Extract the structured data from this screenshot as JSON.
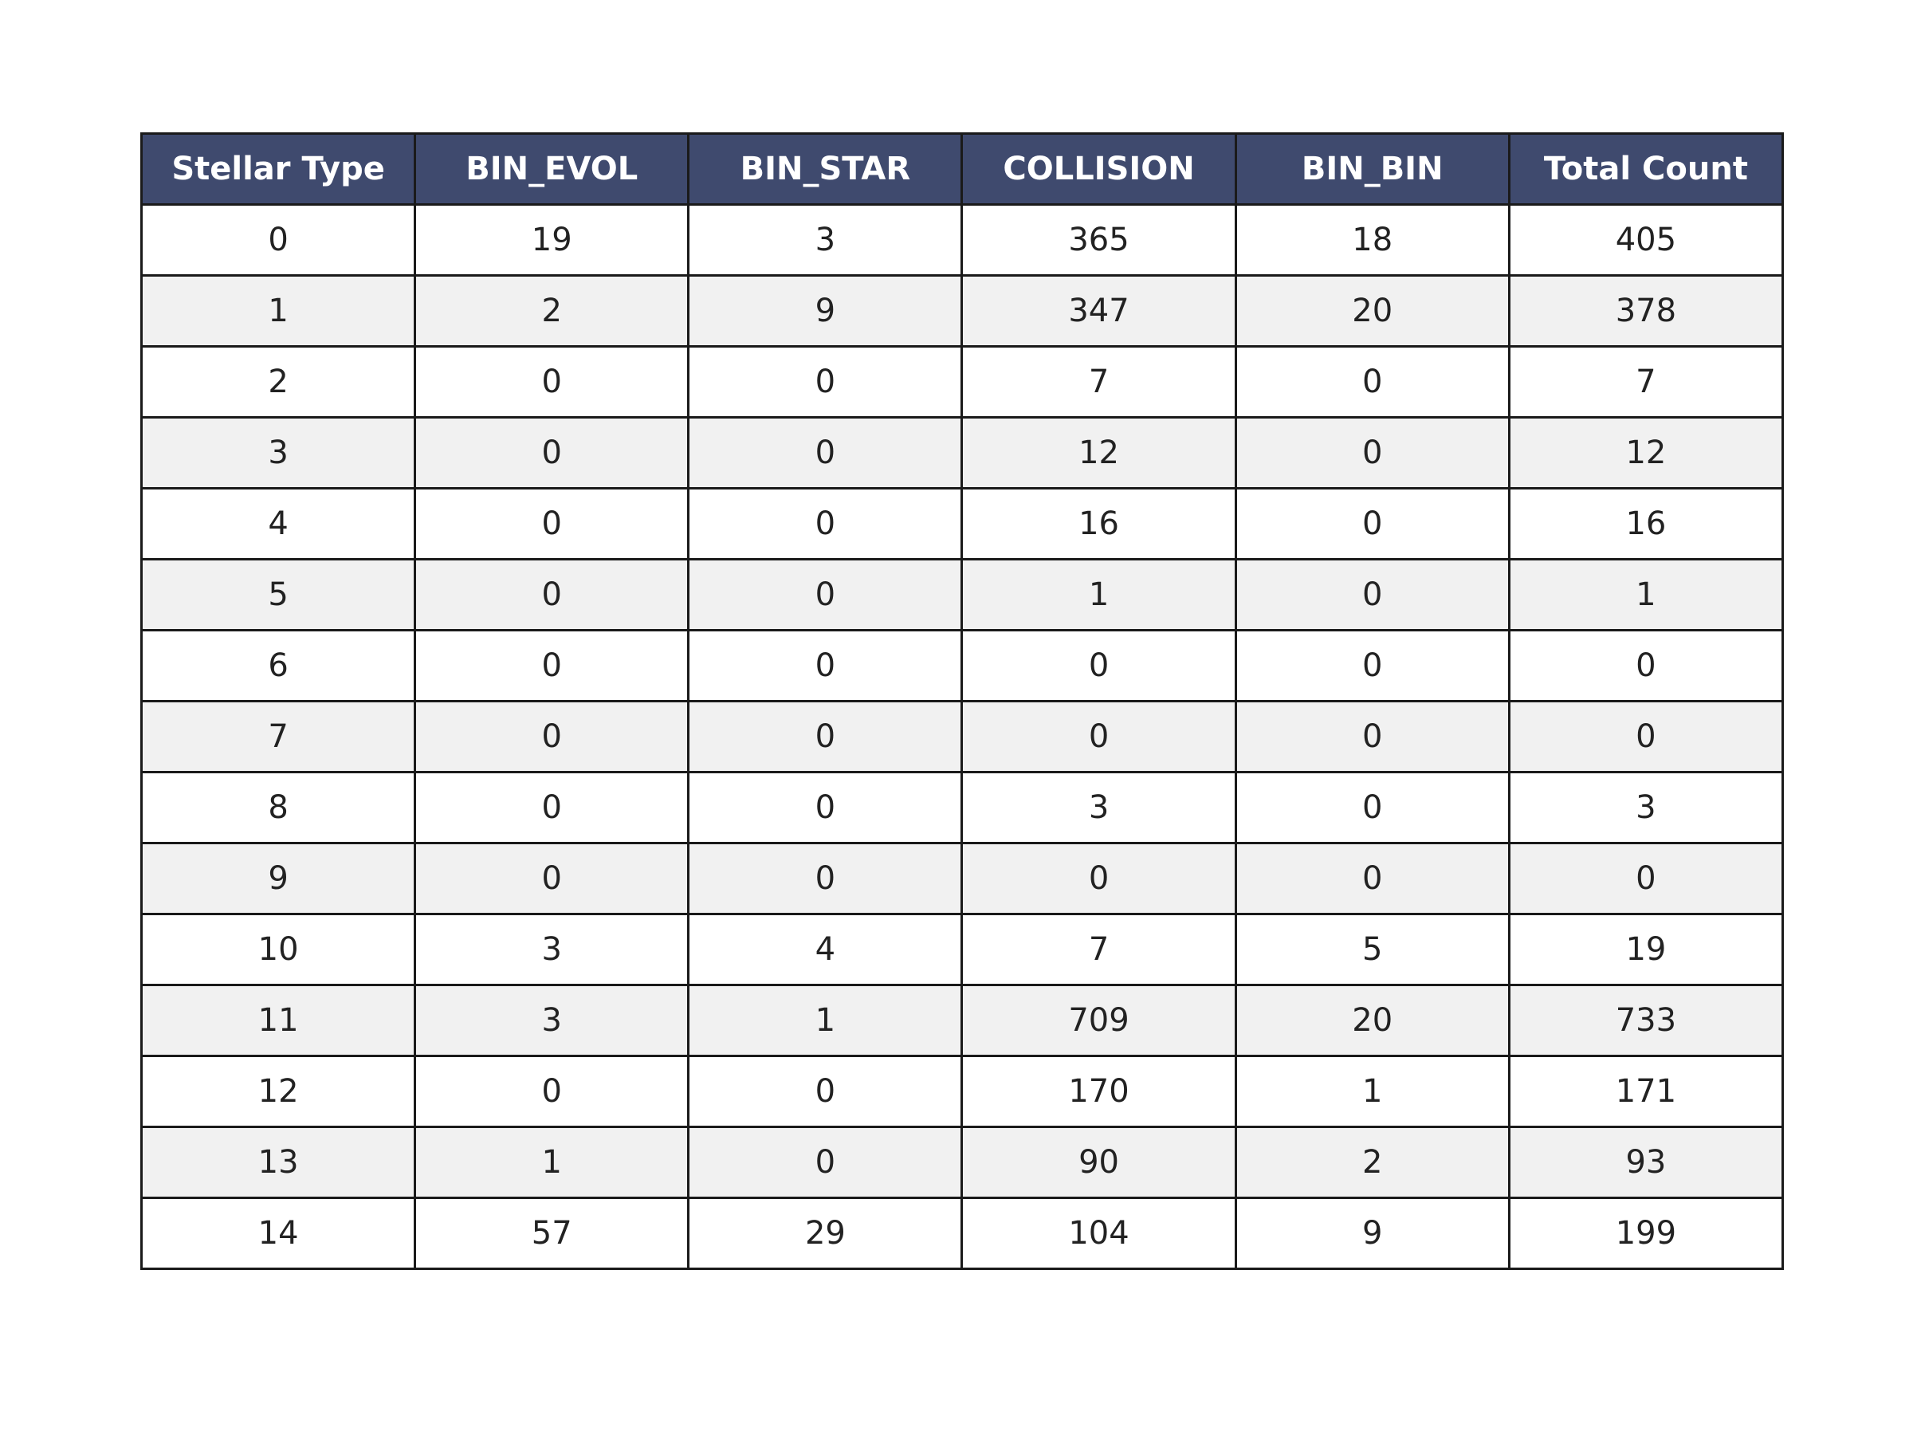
{
  "chart_data": {
    "type": "table",
    "colors": {
      "header_background": "#3f4a6e",
      "header_text": "#ffffff",
      "row_odd": "#ffffff",
      "row_even": "#f1f1f1",
      "border": "#1a1a1a",
      "cell_text": "#222222"
    },
    "columns": [
      "Stellar Type",
      "BIN_EVOL",
      "BIN_STAR",
      "COLLISION",
      "BIN_BIN",
      "Total Count"
    ],
    "rows": [
      [
        "0",
        "19",
        "3",
        "365",
        "18",
        "405"
      ],
      [
        "1",
        "2",
        "9",
        "347",
        "20",
        "378"
      ],
      [
        "2",
        "0",
        "0",
        "7",
        "0",
        "7"
      ],
      [
        "3",
        "0",
        "0",
        "12",
        "0",
        "12"
      ],
      [
        "4",
        "0",
        "0",
        "16",
        "0",
        "16"
      ],
      [
        "5",
        "0",
        "0",
        "1",
        "0",
        "1"
      ],
      [
        "6",
        "0",
        "0",
        "0",
        "0",
        "0"
      ],
      [
        "7",
        "0",
        "0",
        "0",
        "0",
        "0"
      ],
      [
        "8",
        "0",
        "0",
        "3",
        "0",
        "3"
      ],
      [
        "9",
        "0",
        "0",
        "0",
        "0",
        "0"
      ],
      [
        "10",
        "3",
        "4",
        "7",
        "5",
        "19"
      ],
      [
        "11",
        "3",
        "1",
        "709",
        "20",
        "733"
      ],
      [
        "12",
        "0",
        "0",
        "170",
        "1",
        "171"
      ],
      [
        "13",
        "1",
        "0",
        "90",
        "2",
        "93"
      ],
      [
        "14",
        "57",
        "29",
        "104",
        "9",
        "199"
      ]
    ]
  }
}
